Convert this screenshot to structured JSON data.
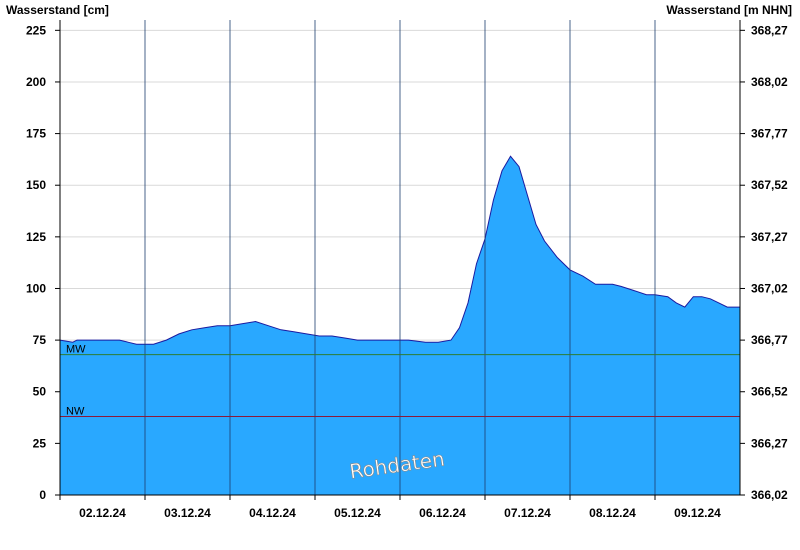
{
  "chart_data": {
    "type": "area",
    "left_axis_title": "Wasserstand [cm]",
    "right_axis_title": "Wasserstand [m NHN]",
    "ylim": [
      0,
      230
    ],
    "y_ticks": [
      0,
      25,
      50,
      75,
      100,
      125,
      150,
      175,
      200,
      225
    ],
    "right_ticks": [
      {
        "value": 0,
        "label": "366,02"
      },
      {
        "value": 25,
        "label": "366,27"
      },
      {
        "value": 50,
        "label": "366,52"
      },
      {
        "value": 75,
        "label": "366,77"
      },
      {
        "value": 100,
        "label": "367,02"
      },
      {
        "value": 125,
        "label": "367,27"
      },
      {
        "value": 150,
        "label": "367,52"
      },
      {
        "value": 175,
        "label": "367,77"
      },
      {
        "value": 200,
        "label": "368,02"
      },
      {
        "value": 225,
        "label": "368,27"
      }
    ],
    "x_range": [
      0,
      8
    ],
    "x_ticks": [
      {
        "x": 0.5,
        "label": "02.12.24"
      },
      {
        "x": 1.5,
        "label": "03.12.24"
      },
      {
        "x": 2.5,
        "label": "04.12.24"
      },
      {
        "x": 3.5,
        "label": "05.12.24"
      },
      {
        "x": 4.5,
        "label": "06.12.24"
      },
      {
        "x": 5.5,
        "label": "07.12.24"
      },
      {
        "x": 6.5,
        "label": "08.12.24"
      },
      {
        "x": 7.5,
        "label": "09.12.24"
      }
    ],
    "day_dividers": [
      1,
      2,
      3,
      4,
      5,
      6,
      7
    ],
    "reference_lines": [
      {
        "label": "MW",
        "value": 68,
        "color": "#2e7d32"
      },
      {
        "label": "NW",
        "value": 38,
        "color": "#8b1a3a"
      }
    ],
    "series": [
      {
        "color": "#29a8ff",
        "x": [
          0,
          0.15,
          0.2,
          0.35,
          0.5,
          0.7,
          0.8,
          0.9,
          1.0,
          1.1,
          1.25,
          1.4,
          1.55,
          1.7,
          1.85,
          2.0,
          2.15,
          2.3,
          2.45,
          2.6,
          2.75,
          2.9,
          3.05,
          3.2,
          3.35,
          3.5,
          3.7,
          3.9,
          4.1,
          4.3,
          4.45,
          4.6,
          4.7,
          4.8,
          4.9,
          5.0,
          5.1,
          5.2,
          5.3,
          5.4,
          5.5,
          5.6,
          5.7,
          5.85,
          6.0,
          6.15,
          6.3,
          6.4,
          6.5,
          6.6,
          6.75,
          6.9,
          7.0,
          7.15,
          7.25,
          7.35,
          7.45,
          7.55,
          7.65,
          7.75,
          7.85,
          8.0
        ],
        "y": [
          75,
          74,
          75,
          75,
          75,
          75,
          74,
          73,
          73,
          73,
          75,
          78,
          80,
          81,
          82,
          82,
          83,
          84,
          82,
          80,
          79,
          78,
          77,
          77,
          76,
          75,
          75,
          75,
          75,
          74,
          74,
          75,
          81,
          93,
          112,
          124,
          143,
          157,
          164,
          159,
          145,
          131,
          123,
          115,
          109,
          106,
          102,
          102,
          102,
          101,
          99,
          97,
          97,
          96,
          93,
          91,
          96,
          96,
          95,
          93,
          91,
          91
        ]
      }
    ],
    "watermark": "Rohdaten"
  }
}
